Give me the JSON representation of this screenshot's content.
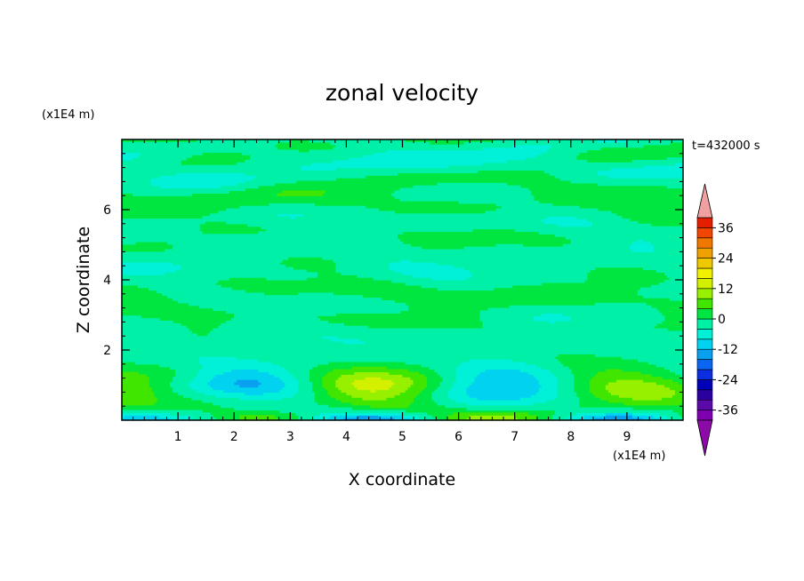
{
  "chart_data": {
    "type": "heatmap",
    "title": "zonal velocity",
    "xlabel": "X coordinate",
    "ylabel": "Z coordinate",
    "x_unit": "(x1E4 m)",
    "y_unit": "(x1E4 m)",
    "time_label": "t=432000 s",
    "xlim": [
      0,
      10
    ],
    "ylim": [
      0,
      8
    ],
    "x_ticks": [
      1,
      2,
      3,
      4,
      5,
      6,
      7,
      8,
      9
    ],
    "y_ticks": [
      2,
      4,
      6
    ],
    "colorbar": {
      "levels": [
        -40,
        -36,
        -32,
        -28,
        -24,
        -20,
        -16,
        -12,
        -8,
        -4,
        0,
        4,
        8,
        12,
        16,
        20,
        24,
        28,
        32,
        36,
        40
      ],
      "labels": [
        36,
        24,
        12,
        0,
        -12,
        -24,
        -36
      ],
      "colors": [
        "#7f00b0",
        "#5a0aa8",
        "#2a00a0",
        "#0000b8",
        "#0a2ee0",
        "#0a66f0",
        "#0aa0f0",
        "#00d2f0",
        "#00f0d8",
        "#00f0a8",
        "#00e640",
        "#40e600",
        "#96f000",
        "#d2f000",
        "#f0f000",
        "#f0c800",
        "#f0a000",
        "#f07800",
        "#f04600",
        "#e61e00"
      ],
      "under_color": "#8c0aa8",
      "over_color": "#f0a0a0"
    }
  }
}
